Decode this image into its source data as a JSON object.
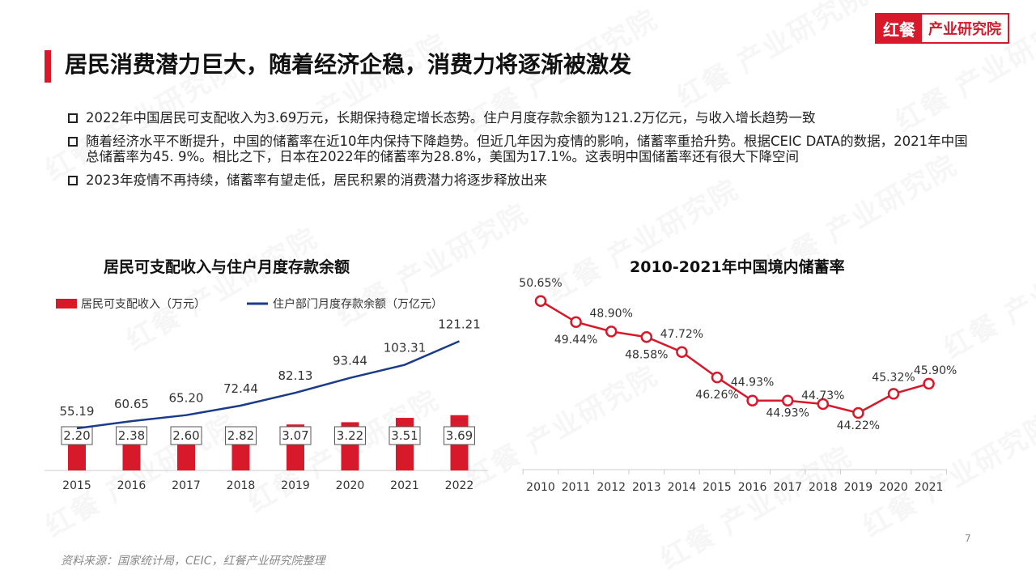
{
  "logo": {
    "mark": "红餐",
    "text": "产业研究院"
  },
  "watermark_text": "红餐 产业研究院",
  "page_title": "居民消费潜力巨大，随着经济企稳，消费力将逐渐被激发",
  "bullets": [
    "2022年中国居民可支配收入为3.69万元，长期保持稳定增长态势。住户月度存款余额为121.2万亿元，与收入增长趋势一致",
    "随着经济水平不断提升，中国的储蓄率在近10年内保持下降趋势。但近几年因为疫情的影响，储蓄率重拾升势。根据CEIC DATA的数据，2021年中国总储蓄率为45. 9%。相比之下，日本在2022年的储蓄率为28.8%，美国为17.1%。这表明中国储蓄率还有很大下降空间",
    "2023年疫情不再持续，储蓄率有望走低，居民积累的消费潜力将逐步释放出来"
  ],
  "chart_data": [
    {
      "type": "bar",
      "title": "居民可支配收入与住户月度存款余额",
      "categories": [
        "2015",
        "2016",
        "2017",
        "2018",
        "2019",
        "2020",
        "2021",
        "2022"
      ],
      "series": [
        {
          "name": "居民可支配收入（万元）",
          "type": "bar",
          "color": "#d8182b",
          "values": [
            2.2,
            2.38,
            2.6,
            2.82,
            3.07,
            3.22,
            3.51,
            3.69
          ],
          "labels": [
            "2.20",
            "2.38",
            "2.60",
            "2.82",
            "3.07",
            "3.22",
            "3.51",
            "3.69"
          ]
        },
        {
          "name": "住户部门月度存款余额（万亿元）",
          "type": "line",
          "color": "#1a3b8c",
          "values": [
            55.19,
            60.65,
            65.2,
            72.44,
            82.13,
            93.44,
            103.31,
            121.21
          ],
          "labels": [
            "55.19",
            "60.65",
            "65.20",
            "72.44",
            "82.13",
            "93.44",
            "103.31",
            "121.21"
          ]
        }
      ],
      "legend": "top-left",
      "grid": false
    },
    {
      "type": "line",
      "title": "2010-2021年中国境内储蓄率",
      "categories": [
        "2010",
        "2011",
        "2012",
        "2013",
        "2014",
        "2015",
        "2016",
        "2017",
        "2018",
        "2019",
        "2020",
        "2021"
      ],
      "series": [
        {
          "color": "#d8182b",
          "values": [
            50.65,
            49.44,
            48.9,
            48.58,
            47.72,
            46.26,
            44.93,
            44.93,
            44.73,
            44.22,
            45.32,
            45.9
          ],
          "labels": [
            "50.65%",
            "49.44%",
            "48.90%",
            "48.58%",
            "47.72%",
            "46.26%",
            "44.93%",
            "44.93%",
            "44.73%",
            "44.22%",
            "45.32%",
            "45.90%"
          ]
        }
      ],
      "ylim": [
        43,
        52
      ],
      "grid": false
    }
  ],
  "source": "资料来源：国家统计局，CEIC，红餐产业研究院整理",
  "page_number": "7"
}
